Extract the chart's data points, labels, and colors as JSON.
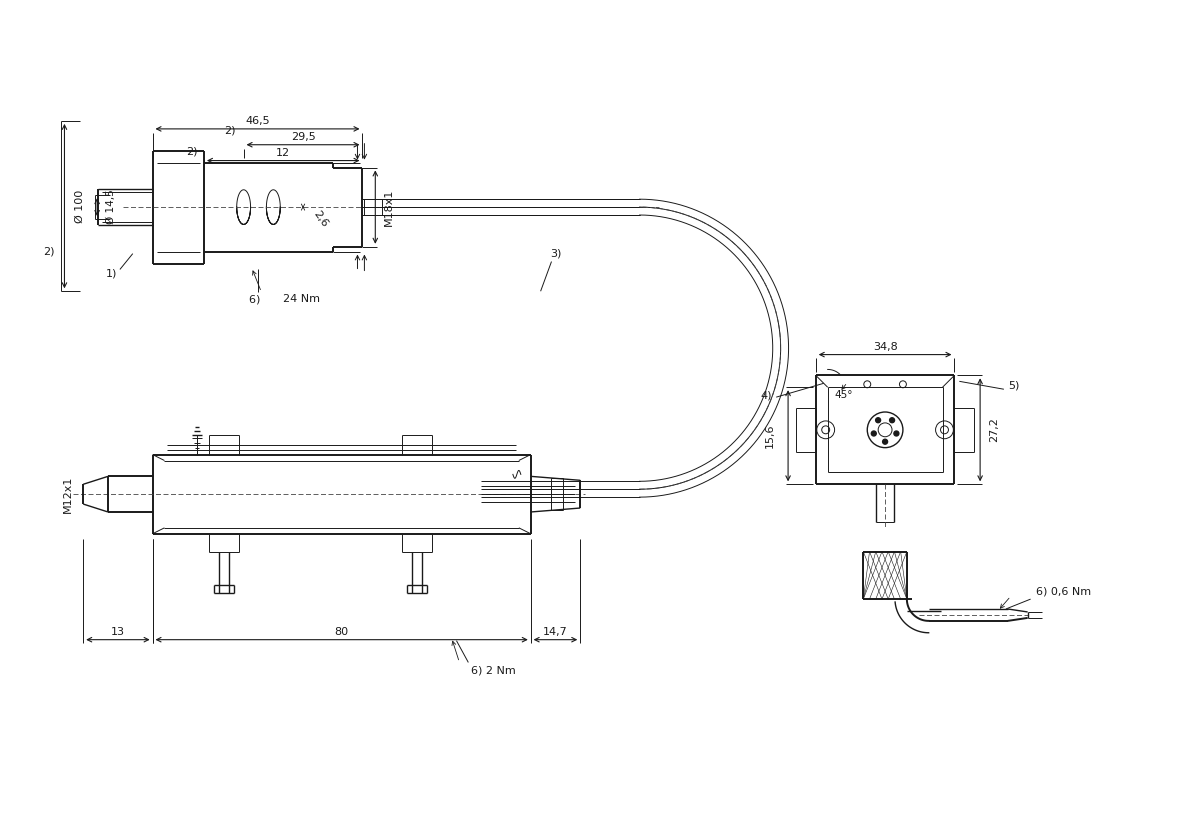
{
  "bg_color": "#ffffff",
  "line_color": "#1a1a1a",
  "annotations": {
    "dim_46_5": "46,5",
    "dim_29_5": "29,5",
    "dim_12": "12",
    "dim_2_6": "2,6",
    "dim_100": "Ø 100",
    "dim_14_5": "Ø 14,5",
    "dim_M18x1": "M18x1",
    "dim_24Nm": "24 Nm",
    "label_1": "1)",
    "label_2_top": "2)",
    "label_6_top": "6)",
    "dim_13": "13",
    "dim_80": "80",
    "dim_14_7": "14,7",
    "dim_M12x1": "M12x1",
    "dim_2Nm": "2 Nm",
    "label_6_bot": "6)",
    "label_2_left": "2)",
    "dim_34_8": "34,8",
    "dim_15_6": "15,6",
    "dim_27_2": "27,2",
    "dim_45deg": "45°",
    "label_3": "3)",
    "label_4": "4)",
    "label_5": "5)",
    "dim_06Nm": "0,6 Nm",
    "label_6_right": "6)"
  }
}
